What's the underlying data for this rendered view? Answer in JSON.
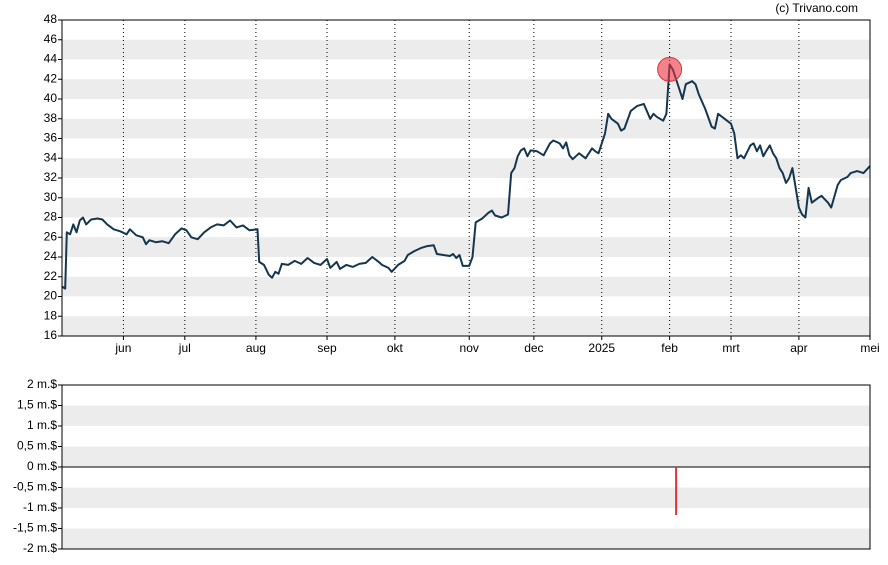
{
  "chart_data": [
    {
      "type": "line",
      "annotation": "(c) Trivano.com",
      "color": "#15364f",
      "grid": true,
      "xlim": [
        0,
        250
      ],
      "ylim": [
        16,
        48
      ],
      "yticks": [
        16,
        18,
        20,
        22,
        24,
        26,
        28,
        30,
        32,
        34,
        36,
        38,
        40,
        42,
        44,
        46,
        48
      ],
      "xticks": [
        {
          "value": 19,
          "label": "jun"
        },
        {
          "value": 38,
          "label": "jul"
        },
        {
          "value": 60,
          "label": "aug"
        },
        {
          "value": 82,
          "label": "sep"
        },
        {
          "value": 103,
          "label": "okt"
        },
        {
          "value": 126,
          "label": "nov"
        },
        {
          "value": 146,
          "label": "dec"
        },
        {
          "value": 167,
          "label": "2025"
        },
        {
          "value": 188,
          "label": "feb"
        },
        {
          "value": 207,
          "label": "mrt"
        },
        {
          "value": 228,
          "label": "apr"
        },
        {
          "value": 250,
          "label": "mei"
        }
      ],
      "x": [
        0,
        1,
        1.5,
        2.5,
        3.5,
        4.5,
        5.5,
        6.5,
        7.5,
        9,
        11,
        12.5,
        14,
        16,
        18,
        20,
        21,
        23,
        25,
        26,
        27,
        29,
        31,
        33,
        35,
        37,
        38.5,
        40,
        42,
        44,
        46,
        48,
        50,
        52,
        54,
        56,
        58,
        60.5,
        61,
        62.5,
        64,
        65,
        66,
        67,
        68,
        70,
        72,
        74,
        76,
        78,
        80,
        82,
        83,
        85,
        86,
        88,
        90,
        92,
        94,
        96,
        98,
        99,
        101,
        102,
        104,
        106,
        107,
        109,
        111,
        113,
        115,
        116,
        118,
        120,
        121,
        122,
        123,
        124,
        126,
        127,
        128,
        130,
        132,
        133,
        134,
        136,
        138,
        139,
        140,
        141,
        142,
        143,
        144,
        145,
        147,
        149,
        151,
        152,
        154,
        155,
        156,
        157,
        158,
        160,
        162,
        164,
        165,
        166,
        168,
        169,
        170,
        172,
        173,
        174,
        176,
        178,
        180,
        182,
        183,
        184,
        186,
        187,
        188,
        189,
        190,
        191,
        192,
        193,
        195,
        196,
        197,
        199,
        201,
        202,
        203,
        205,
        207,
        208,
        209,
        210,
        211,
        213,
        214,
        215,
        216,
        217,
        218,
        219,
        220,
        221,
        222,
        223,
        224,
        225,
        226,
        227,
        228,
        229,
        230,
        231,
        232,
        234,
        235,
        237,
        238,
        240,
        241,
        243,
        244,
        246,
        248,
        250
      ],
      "values": [
        21,
        20.8,
        26.5,
        26.3,
        27.3,
        26.5,
        27.7,
        28,
        27.3,
        27.8,
        27.9,
        27.8,
        27.3,
        26.8,
        26.6,
        26.3,
        26.8,
        26.2,
        26,
        25.3,
        25.7,
        25.5,
        25.6,
        25.4,
        26.3,
        26.9,
        26.7,
        26,
        25.8,
        26.5,
        27,
        27.3,
        27.2,
        27.7,
        27,
        27.2,
        26.7,
        26.8,
        23.5,
        23.2,
        22.2,
        21.9,
        22.5,
        22.3,
        23.3,
        23.2,
        23.6,
        23.3,
        23.9,
        23.4,
        23.2,
        23.8,
        22.9,
        23.5,
        22.8,
        23.2,
        23,
        23.3,
        23.4,
        24,
        23.5,
        23.2,
        22.9,
        22.5,
        23.2,
        23.6,
        24.2,
        24.6,
        24.9,
        25.1,
        25.2,
        24.3,
        24.2,
        24.1,
        24.3,
        23.9,
        24.2,
        23.1,
        23.1,
        24,
        27.5,
        27.9,
        28.5,
        28.7,
        28.2,
        28,
        28.3,
        32.5,
        33,
        34.2,
        34.8,
        35,
        34.2,
        34.8,
        34.7,
        34.3,
        35.5,
        35.8,
        35.5,
        35,
        35.6,
        34.3,
        33.9,
        34.5,
        34,
        35,
        34.7,
        34.5,
        36.5,
        38.5,
        38,
        37.5,
        36.8,
        37,
        38.8,
        39.3,
        39.5,
        38,
        38.5,
        38.2,
        37.8,
        38.5,
        43.5,
        43,
        42,
        41,
        40,
        41.5,
        41.8,
        41.5,
        40.5,
        39,
        37.2,
        37,
        38.5,
        38,
        37.5,
        36.5,
        34,
        34.3,
        34,
        35.3,
        35.5,
        34.7,
        35.3,
        34.2,
        34.8,
        35.3,
        34.5,
        34,
        33,
        32.5,
        31.5,
        32,
        33,
        31,
        29,
        28.3,
        28,
        31,
        29.5,
        30,
        30.2,
        29.5,
        29,
        31.3,
        31.8,
        32.1,
        32.5,
        32.7,
        32.5,
        33.2
      ],
      "markers": [
        {
          "x": 188,
          "y": 43,
          "color": "#e8323c"
        }
      ]
    },
    {
      "type": "bar",
      "color": "#e8323c",
      "grid": true,
      "xlim": [
        0,
        250
      ],
      "ylim": [
        -2,
        2
      ],
      "yticks": [
        {
          "value": -2,
          "label": "-2 m.$"
        },
        {
          "value": -1.5,
          "label": "-1,5 m.$"
        },
        {
          "value": -1,
          "label": "-1 m.$"
        },
        {
          "value": -0.5,
          "label": "-0,5 m.$"
        },
        {
          "value": 0,
          "label": "0 m.$"
        },
        {
          "value": 0.5,
          "label": "0,5 m.$"
        },
        {
          "value": 1,
          "label": "1 m.$"
        },
        {
          "value": 1.5,
          "label": "1,5 m.$"
        },
        {
          "value": 2,
          "label": "2 m.$"
        }
      ],
      "x": [
        190
      ],
      "values": [
        -1.17
      ]
    }
  ]
}
